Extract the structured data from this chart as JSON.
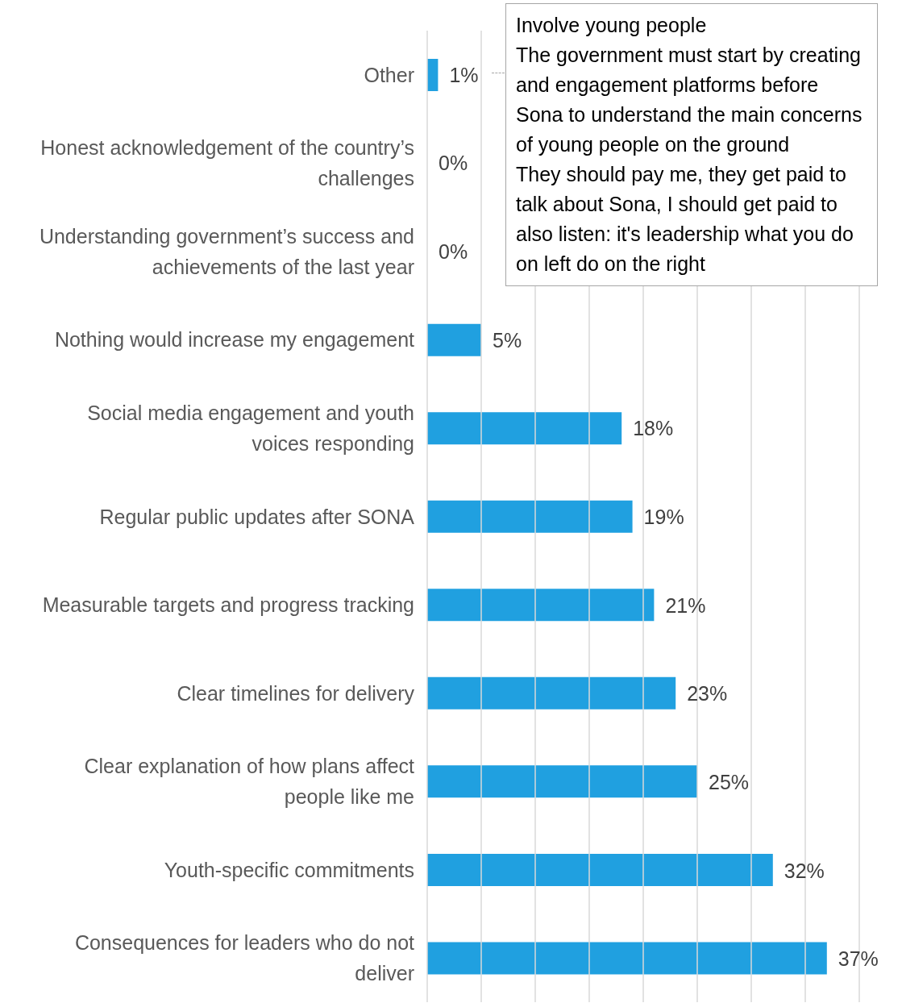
{
  "chart_data": {
    "type": "bar",
    "orientation": "horizontal",
    "categories": [
      "Other",
      "Honest acknowledgement of the country’s challenges",
      "Understanding government’s success and achievements of the last year",
      "Nothing would increase my engagement",
      "Social media engagement and youth voices responding",
      "Regular public updates after SONA",
      "Measurable targets and progress tracking",
      "Clear timelines for delivery",
      "Clear explanation of how plans affect people like me",
      "Youth-specific commitments",
      "Consequences for leaders who do not deliver"
    ],
    "values": [
      1,
      0,
      0,
      5,
      18,
      19,
      21,
      23,
      25,
      32,
      37
    ],
    "value_labels": [
      "1%",
      "0%",
      "0%",
      "5%",
      "18%",
      "19%",
      "21%",
      "23%",
      "25%",
      "32%",
      "37%"
    ],
    "color": "#20a0e0",
    "xlim": [
      0,
      40
    ],
    "xticks": [
      {
        "value": 0,
        "label": null
      },
      {
        "value": 5,
        "label": null
      },
      {
        "value": 10,
        "label": null
      },
      {
        "value": 15,
        "label": null
      },
      {
        "value": 20,
        "label": null
      },
      {
        "value": 25,
        "label": null
      },
      {
        "value": 30,
        "label": null
      },
      {
        "value": 35,
        "label": null
      },
      {
        "value": 40,
        "label": null
      }
    ],
    "tick_labels": "y",
    "grid": "x",
    "annotations": [
      "Involve young people",
      "The government must start by creating and engagement platforms before Sona to understand the main concerns of young people on the ground",
      "They should pay me, they get paid to talk about Sona, I should get paid to also listen: it's leadership what you do on left do on the right"
    ]
  }
}
